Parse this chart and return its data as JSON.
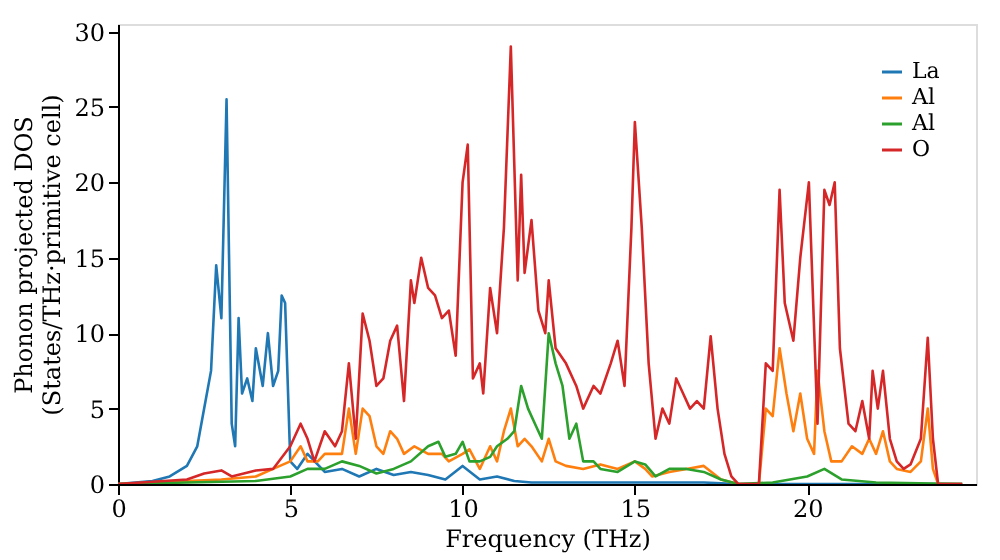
{
  "chart_data": {
    "type": "line",
    "xlabel": "Frequency (THz)",
    "ylabel": "Phonon projected DOS\n(States/THz·primitive cell)",
    "xlim": [
      0,
      24.9
    ],
    "ylim": [
      0,
      30.5
    ],
    "xticks": [
      0,
      5,
      10,
      15,
      20
    ],
    "yticks": [
      0,
      5,
      10,
      15,
      20,
      25,
      30
    ],
    "grid": false,
    "legend": "top right",
    "line_style": "solid",
    "marker": "none",
    "series": [
      {
        "name": "La",
        "color": "#1f77b4",
        "x": [
          0,
          1,
          1.5,
          2,
          2.3,
          2.5,
          2.7,
          2.85,
          3.0,
          3.15,
          3.3,
          3.4,
          3.5,
          3.6,
          3.75,
          3.9,
          4.0,
          4.2,
          4.35,
          4.5,
          4.65,
          4.75,
          4.85,
          5.0,
          5.2,
          5.5,
          6,
          6.5,
          7,
          7.5,
          8,
          8.5,
          9,
          9.5,
          10,
          10.5,
          11,
          11.5,
          12,
          13,
          14,
          15,
          16,
          17,
          18,
          24.5
        ],
        "values": [
          0,
          0.2,
          0.5,
          1.2,
          2.5,
          5,
          7.5,
          14.5,
          11,
          25.5,
          4,
          2.5,
          11,
          6,
          7,
          5.5,
          9,
          6.5,
          10,
          6.5,
          7.5,
          12.5,
          12,
          1.5,
          1,
          2,
          0.8,
          1,
          0.5,
          1,
          0.6,
          0.8,
          0.6,
          0.3,
          1.2,
          0.3,
          0.5,
          0.2,
          0.1,
          0.1,
          0.1,
          0.1,
          0.1,
          0.1,
          0,
          0
        ]
      },
      {
        "name": "Al",
        "color": "#ff7f0e",
        "x": [
          0,
          3,
          4,
          4.5,
          5,
          5.3,
          5.5,
          5.8,
          6,
          6.5,
          6.7,
          6.9,
          7.1,
          7.3,
          7.5,
          7.7,
          7.9,
          8.1,
          8.3,
          8.6,
          9,
          9.4,
          9.6,
          10,
          10.2,
          10.5,
          10.8,
          11.0,
          11.2,
          11.4,
          11.6,
          11.8,
          12.0,
          12.3,
          12.5,
          12.7,
          13,
          13.5,
          14,
          14.5,
          15,
          15.3,
          15.5,
          16,
          16.5,
          17,
          17.5,
          18,
          18.6,
          18.8,
          19.0,
          19.2,
          19.4,
          19.6,
          19.8,
          20.0,
          20.2,
          20.3,
          20.5,
          20.7,
          21,
          21.3,
          21.6,
          21.8,
          22.0,
          22.2,
          22.4,
          22.6,
          23,
          23.3,
          23.5,
          23.65,
          23.8,
          24.5
        ],
        "values": [
          0,
          0.3,
          0.5,
          1,
          1.5,
          2.5,
          1.5,
          1.5,
          2,
          2,
          5,
          2,
          5,
          4.5,
          2.5,
          2,
          3.5,
          3,
          2,
          2.5,
          2,
          2,
          1.5,
          2,
          2.3,
          1,
          2.5,
          1.5,
          3.5,
          5,
          2.5,
          3,
          2.5,
          1.5,
          3,
          1.5,
          1.2,
          1,
          1.3,
          1,
          1.5,
          1,
          0.5,
          0.8,
          1,
          1.2,
          0.3,
          0,
          0,
          5,
          4.5,
          9,
          6,
          3.5,
          6,
          3,
          2,
          7.5,
          3.5,
          1.5,
          1.5,
          2.5,
          2,
          3,
          2,
          3.5,
          1.5,
          1,
          0.8,
          1.5,
          5,
          1,
          0,
          0
        ]
      },
      {
        "name": "Al",
        "color": "#2ca02c",
        "x": [
          0,
          4,
          5,
          5.5,
          6,
          6.5,
          7,
          7.5,
          8,
          8.5,
          9,
          9.3,
          9.5,
          9.8,
          10,
          10.2,
          10.5,
          10.8,
          11,
          11.3,
          11.5,
          11.7,
          11.9,
          12.1,
          12.3,
          12.5,
          12.7,
          12.9,
          13.1,
          13.3,
          13.5,
          13.8,
          14,
          14.5,
          15,
          15.3,
          15.6,
          16,
          16.5,
          17,
          17.5,
          18,
          19,
          20,
          20.5,
          21,
          22,
          24.5
        ],
        "values": [
          0,
          0.2,
          0.5,
          1,
          1,
          1.5,
          1.2,
          0.7,
          1,
          1.5,
          2.5,
          2.8,
          1.8,
          2,
          2.8,
          1.5,
          1.5,
          1.8,
          2.5,
          3,
          3.5,
          6.5,
          5,
          4,
          3,
          10,
          8,
          6.5,
          3,
          4,
          1.5,
          1.5,
          1,
          0.8,
          1.5,
          1.3,
          0.5,
          1,
          1,
          0.8,
          0.3,
          0,
          0.1,
          0.5,
          1,
          0.3,
          0.1,
          0
        ]
      },
      {
        "name": "O",
        "color": "#d62728",
        "x": [
          0,
          2,
          2.5,
          3,
          3.3,
          4,
          4.5,
          5,
          5.3,
          5.5,
          5.7,
          6,
          6.3,
          6.5,
          6.7,
          6.9,
          7.1,
          7.3,
          7.5,
          7.7,
          7.9,
          8.1,
          8.3,
          8.5,
          8.6,
          8.8,
          9.0,
          9.2,
          9.4,
          9.6,
          9.8,
          10.0,
          10.15,
          10.3,
          10.5,
          10.6,
          10.8,
          11.0,
          11.2,
          11.4,
          11.6,
          11.7,
          11.8,
          12.0,
          12.2,
          12.4,
          12.5,
          12.7,
          13.0,
          13.3,
          13.5,
          13.8,
          14.0,
          14.3,
          14.5,
          14.7,
          14.9,
          15.0,
          15.2,
          15.4,
          15.6,
          15.8,
          16.0,
          16.2,
          16.4,
          16.6,
          16.8,
          17.0,
          17.2,
          17.4,
          17.6,
          17.8,
          18,
          18.6,
          18.8,
          19.0,
          19.2,
          19.35,
          19.6,
          19.8,
          20.05,
          20.3,
          20.5,
          20.65,
          20.8,
          20.95,
          21.2,
          21.4,
          21.6,
          21.8,
          21.9,
          22.05,
          22.2,
          22.4,
          22.6,
          22.8,
          23.0,
          23.3,
          23.5,
          23.65,
          23.8,
          24.5
        ],
        "values": [
          0,
          0.3,
          0.7,
          0.9,
          0.5,
          0.9,
          1.0,
          2.5,
          4,
          3,
          1.5,
          3.5,
          2.5,
          3.5,
          8,
          3,
          11.3,
          9.5,
          6.5,
          7,
          9.5,
          10.5,
          5.5,
          13.5,
          12,
          15,
          13,
          12.5,
          11,
          11.5,
          8.5,
          20,
          22.5,
          7,
          8,
          6,
          13,
          10,
          17,
          29,
          13.5,
          20.5,
          14,
          17.5,
          11.5,
          10,
          13.5,
          9,
          8,
          6.5,
          5,
          6.5,
          6,
          8,
          9.5,
          6.5,
          17,
          24,
          17,
          8,
          3,
          5,
          4,
          7,
          6,
          5,
          5.5,
          5,
          9.8,
          5,
          2,
          0.5,
          0,
          0,
          8,
          7.5,
          19.5,
          12,
          9.5,
          15,
          20,
          4,
          19.5,
          18.5,
          20,
          9,
          4,
          3.5,
          5.5,
          3,
          7.5,
          5,
          7.5,
          3,
          1.5,
          1,
          1.3,
          3,
          9.7,
          3,
          0,
          0
        ]
      }
    ]
  }
}
